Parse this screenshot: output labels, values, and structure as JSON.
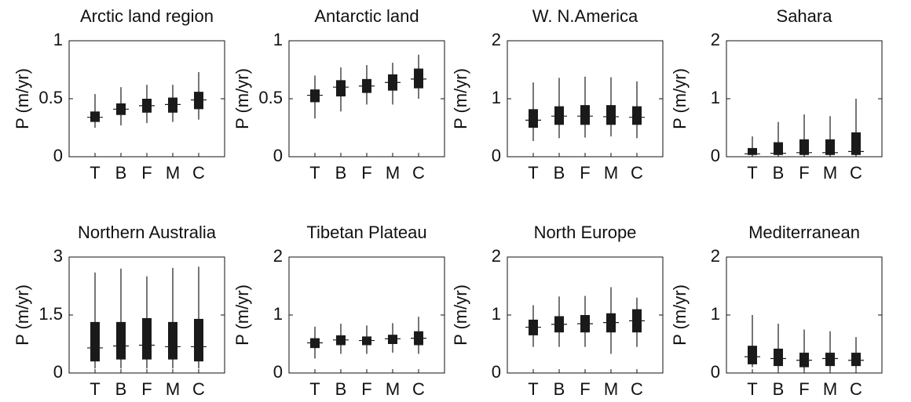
{
  "chart_data": [
    {
      "type": "box",
      "title": "Arctic land region",
      "ylabel": "P (m/yr)",
      "categories": [
        "T",
        "B",
        "F",
        "M",
        "C"
      ],
      "low": [
        0.25,
        0.27,
        0.29,
        0.3,
        0.32
      ],
      "q1": [
        0.3,
        0.36,
        0.38,
        0.38,
        0.41
      ],
      "median": [
        0.34,
        0.41,
        0.44,
        0.45,
        0.49
      ],
      "q3": [
        0.39,
        0.46,
        0.5,
        0.51,
        0.56
      ],
      "high": [
        0.54,
        0.6,
        0.62,
        0.62,
        0.73
      ],
      "ylim": [
        0,
        1
      ],
      "yticks": [
        0,
        0.5,
        1
      ],
      "color": "#1a1a1a"
    },
    {
      "type": "box",
      "title": "Antarctic land",
      "ylabel": "P (m/yr)",
      "categories": [
        "T",
        "B",
        "F",
        "M",
        "C"
      ],
      "low": [
        0.33,
        0.39,
        0.45,
        0.45,
        0.5
      ],
      "q1": [
        0.47,
        0.52,
        0.55,
        0.57,
        0.59
      ],
      "median": [
        0.53,
        0.6,
        0.61,
        0.64,
        0.67
      ],
      "q3": [
        0.58,
        0.66,
        0.67,
        0.71,
        0.76
      ],
      "high": [
        0.7,
        0.77,
        0.79,
        0.81,
        0.88
      ],
      "ylim": [
        0,
        1
      ],
      "yticks": [
        0,
        0.5,
        1
      ],
      "color": "#1a1a1a"
    },
    {
      "type": "box",
      "title": "W. N.America",
      "ylabel": "P (m/yr)",
      "categories": [
        "T",
        "B",
        "F",
        "M",
        "C"
      ],
      "low": [
        0.27,
        0.32,
        0.33,
        0.35,
        0.32
      ],
      "q1": [
        0.5,
        0.55,
        0.55,
        0.55,
        0.55
      ],
      "median": [
        0.63,
        0.7,
        0.7,
        0.69,
        0.68
      ],
      "q3": [
        0.82,
        0.87,
        0.89,
        0.89,
        0.87
      ],
      "high": [
        1.28,
        1.36,
        1.38,
        1.37,
        1.3
      ],
      "ylim": [
        0,
        2
      ],
      "yticks": [
        0,
        1,
        2
      ],
      "color": "#1a1a1a"
    },
    {
      "type": "box",
      "title": "Sahara",
      "ylabel": "P (m/yr)",
      "categories": [
        "T",
        "B",
        "F",
        "M",
        "C"
      ],
      "low": [
        0,
        0,
        0,
        0,
        0
      ],
      "q1": [
        0.03,
        0.03,
        0.03,
        0.03,
        0.03
      ],
      "median": [
        0.05,
        0.06,
        0.07,
        0.07,
        0.09
      ],
      "q3": [
        0.15,
        0.25,
        0.3,
        0.3,
        0.42
      ],
      "high": [
        0.35,
        0.6,
        0.73,
        0.7,
        1.0
      ],
      "ylim": [
        0,
        2
      ],
      "yticks": [
        0,
        1,
        2
      ],
      "color": "#1a1a1a"
    },
    {
      "type": "box",
      "title": "Northern Australia",
      "ylabel": "P (m/yr)",
      "categories": [
        "T",
        "B",
        "F",
        "M",
        "C"
      ],
      "low": [
        0.12,
        0.12,
        0.12,
        0.12,
        0.12
      ],
      "q1": [
        0.3,
        0.35,
        0.35,
        0.35,
        0.3
      ],
      "median": [
        0.65,
        0.7,
        0.72,
        0.68,
        0.68
      ],
      "q3": [
        1.32,
        1.32,
        1.42,
        1.32,
        1.4
      ],
      "high": [
        2.6,
        2.7,
        2.5,
        2.72,
        2.75
      ],
      "ylim": [
        0,
        3
      ],
      "yticks": [
        0,
        1.5,
        3
      ],
      "color": "#1a1a1a"
    },
    {
      "type": "box",
      "title": "Tibetan Plateau",
      "ylabel": "P (m/yr)",
      "categories": [
        "T",
        "B",
        "F",
        "M",
        "C"
      ],
      "low": [
        0.25,
        0.33,
        0.33,
        0.35,
        0.33
      ],
      "q1": [
        0.43,
        0.48,
        0.48,
        0.5,
        0.48
      ],
      "median": [
        0.52,
        0.57,
        0.56,
        0.59,
        0.6
      ],
      "q3": [
        0.6,
        0.65,
        0.63,
        0.66,
        0.72
      ],
      "high": [
        0.8,
        0.85,
        0.82,
        0.86,
        0.97
      ],
      "ylim": [
        0,
        2
      ],
      "yticks": [
        0,
        1,
        2
      ],
      "color": "#1a1a1a"
    },
    {
      "type": "box",
      "title": "North Europe",
      "ylabel": "P (m/yr)",
      "categories": [
        "T",
        "B",
        "F",
        "M",
        "C"
      ],
      "low": [
        0.45,
        0.45,
        0.45,
        0.33,
        0.45
      ],
      "q1": [
        0.65,
        0.7,
        0.7,
        0.7,
        0.7
      ],
      "median": [
        0.79,
        0.84,
        0.85,
        0.87,
        0.9
      ],
      "q3": [
        0.92,
        0.98,
        1.0,
        1.03,
        1.1
      ],
      "high": [
        1.17,
        1.32,
        1.33,
        1.48,
        1.3
      ],
      "ylim": [
        0,
        2
      ],
      "yticks": [
        0,
        1,
        2
      ],
      "color": "#1a1a1a"
    },
    {
      "type": "box",
      "title": "Mediterranean",
      "ylabel": "P (m/yr)",
      "categories": [
        "T",
        "B",
        "F",
        "M",
        "C"
      ],
      "low": [
        0.1,
        0.05,
        0.05,
        0.05,
        0.07
      ],
      "q1": [
        0.15,
        0.12,
        0.1,
        0.12,
        0.12
      ],
      "median": [
        0.28,
        0.25,
        0.22,
        0.25,
        0.22
      ],
      "q3": [
        0.47,
        0.42,
        0.35,
        0.35,
        0.35
      ],
      "high": [
        1.0,
        0.85,
        0.75,
        0.72,
        0.62
      ],
      "ylim": [
        0,
        2
      ],
      "yticks": [
        0,
        1,
        2
      ],
      "color": "#1a1a1a"
    }
  ]
}
